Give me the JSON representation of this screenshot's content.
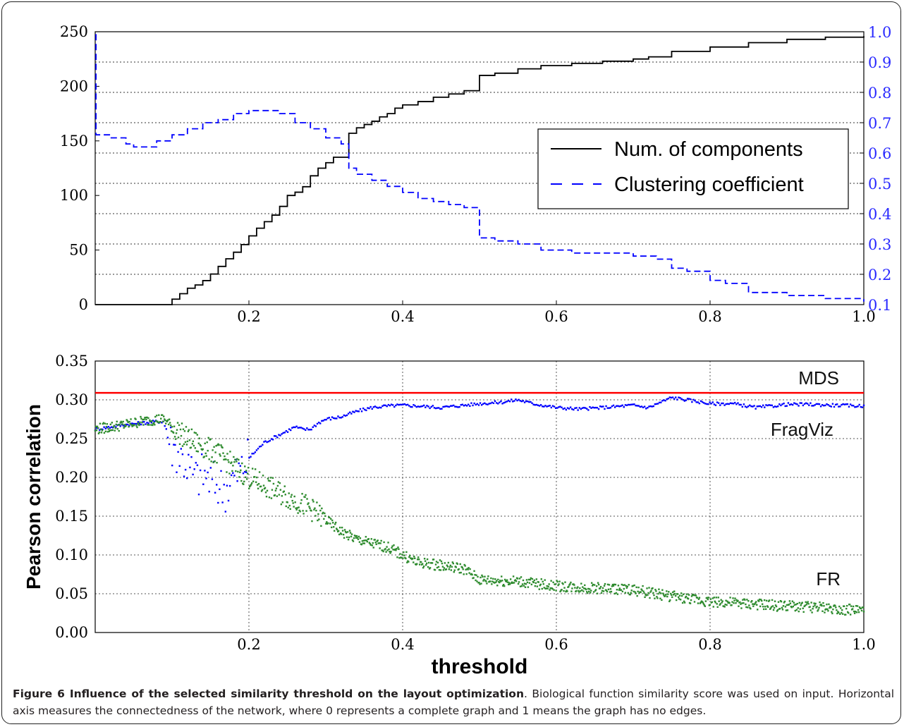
{
  "chart_data": [
    {
      "type": "line",
      "xlabel": "",
      "ylabel": "",
      "xlim": [
        0.0,
        1.0
      ],
      "ylim_left": [
        0,
        250
      ],
      "ylim_right": [
        0.1,
        1.0
      ],
      "x_ticks": [
        0.2,
        0.4,
        0.6,
        0.8,
        1.0
      ],
      "y_ticks_left": [
        0,
        50,
        100,
        150,
        200,
        250
      ],
      "y_ticks_right": [
        0.1,
        0.2,
        0.3,
        0.4,
        0.5,
        0.6,
        0.7,
        0.8,
        0.9,
        1.0
      ],
      "x_tick_labels": [
        "0.2",
        "0.4",
        "0.6",
        "0.8",
        "1.0"
      ],
      "y_tick_labels_left": [
        "0",
        "50",
        "100",
        "150",
        "200",
        "250"
      ],
      "y_tick_labels_right": [
        "0.1",
        "0.2",
        "0.3",
        "0.4",
        "0.5",
        "0.6",
        "0.7",
        "0.8",
        "0.9",
        "1.0"
      ],
      "grid": "horizontal dotted",
      "legend_position": "center-right",
      "series": [
        {
          "name": "Num. of components",
          "axis": "left",
          "color": "#000000",
          "style": "solid-step",
          "x": [
            0.0,
            0.09,
            0.1,
            0.11,
            0.12,
            0.13,
            0.14,
            0.15,
            0.16,
            0.17,
            0.18,
            0.19,
            0.2,
            0.21,
            0.22,
            0.23,
            0.24,
            0.25,
            0.26,
            0.27,
            0.28,
            0.29,
            0.3,
            0.31,
            0.32,
            0.33,
            0.34,
            0.35,
            0.36,
            0.37,
            0.38,
            0.39,
            0.4,
            0.42,
            0.44,
            0.46,
            0.48,
            0.5,
            0.52,
            0.55,
            0.58,
            0.62,
            0.66,
            0.7,
            0.72,
            0.75,
            0.8,
            0.85,
            0.9,
            0.95,
            1.0
          ],
          "values": [
            0,
            0,
            5,
            10,
            15,
            18,
            22,
            28,
            35,
            42,
            48,
            55,
            63,
            70,
            76,
            82,
            90,
            100,
            103,
            108,
            118,
            125,
            130,
            135,
            135,
            157,
            162,
            165,
            168,
            172,
            175,
            180,
            183,
            186,
            190,
            193,
            196,
            210,
            212,
            216,
            219,
            221,
            223,
            225,
            227,
            232,
            236,
            240,
            243,
            245,
            246
          ]
        },
        {
          "name": "Clustering coefficient",
          "axis": "right",
          "color": "#0000ff",
          "style": "dashed-step",
          "x": [
            0.0,
            0.001,
            0.005,
            0.02,
            0.04,
            0.05,
            0.06,
            0.08,
            0.1,
            0.12,
            0.14,
            0.16,
            0.18,
            0.2,
            0.21,
            0.22,
            0.24,
            0.25,
            0.26,
            0.28,
            0.3,
            0.32,
            0.33,
            0.34,
            0.36,
            0.38,
            0.4,
            0.42,
            0.44,
            0.46,
            0.48,
            0.5,
            0.52,
            0.55,
            0.58,
            0.62,
            0.66,
            0.7,
            0.73,
            0.75,
            0.77,
            0.8,
            0.82,
            0.85,
            0.9,
            0.95,
            1.0
          ],
          "values": [
            0.99,
            0.66,
            0.66,
            0.65,
            0.63,
            0.62,
            0.62,
            0.64,
            0.66,
            0.68,
            0.7,
            0.71,
            0.73,
            0.74,
            0.74,
            0.74,
            0.73,
            0.73,
            0.7,
            0.68,
            0.65,
            0.63,
            0.55,
            0.53,
            0.51,
            0.49,
            0.47,
            0.45,
            0.44,
            0.43,
            0.42,
            0.32,
            0.31,
            0.3,
            0.28,
            0.27,
            0.27,
            0.26,
            0.25,
            0.22,
            0.21,
            0.18,
            0.17,
            0.14,
            0.13,
            0.12,
            0.11
          ]
        }
      ]
    },
    {
      "type": "scatter",
      "xlabel": "threshold",
      "ylabel": "Pearson correlation",
      "xlim": [
        0.0,
        1.0
      ],
      "ylim": [
        0.0,
        0.35
      ],
      "x_ticks": [
        0.2,
        0.4,
        0.6,
        0.8,
        1.0
      ],
      "y_ticks": [
        0.0,
        0.05,
        0.1,
        0.15,
        0.2,
        0.25,
        0.3,
        0.35
      ],
      "x_tick_labels": [
        "0.2",
        "0.4",
        "0.6",
        "0.8",
        "1.0"
      ],
      "y_tick_labels": [
        "0.00",
        "0.05",
        "0.10",
        "0.15",
        "0.20",
        "0.25",
        "0.30",
        "0.35"
      ],
      "grid": "both dotted",
      "series": [
        {
          "name": "MDS",
          "type": "hline",
          "color": "#ff0000",
          "value": 0.309
        },
        {
          "name": "FragViz",
          "color": "#0000ff",
          "x": [
            0.0,
            0.02,
            0.04,
            0.06,
            0.08,
            0.09,
            0.1,
            0.11,
            0.12,
            0.13,
            0.14,
            0.15,
            0.16,
            0.17,
            0.18,
            0.19,
            0.2,
            0.21,
            0.22,
            0.23,
            0.24,
            0.25,
            0.26,
            0.27,
            0.28,
            0.29,
            0.3,
            0.32,
            0.34,
            0.36,
            0.38,
            0.4,
            0.42,
            0.45,
            0.48,
            0.5,
            0.53,
            0.55,
            0.57,
            0.6,
            0.63,
            0.66,
            0.7,
            0.72,
            0.75,
            0.77,
            0.8,
            0.83,
            0.86,
            0.9,
            0.93,
            0.96,
            1.0
          ],
          "values": [
            0.262,
            0.265,
            0.268,
            0.27,
            0.272,
            0.272,
            0.24,
            0.23,
            0.215,
            0.2,
            0.205,
            0.195,
            0.19,
            0.185,
            0.2,
            0.21,
            0.225,
            0.235,
            0.245,
            0.25,
            0.255,
            0.26,
            0.265,
            0.262,
            0.262,
            0.27,
            0.275,
            0.278,
            0.285,
            0.29,
            0.292,
            0.293,
            0.292,
            0.29,
            0.293,
            0.295,
            0.297,
            0.3,
            0.295,
            0.29,
            0.288,
            0.29,
            0.293,
            0.29,
            0.303,
            0.3,
            0.295,
            0.295,
            0.29,
            0.294,
            0.294,
            0.293,
            0.292
          ]
        },
        {
          "name": "FR",
          "color": "#2e8b2e",
          "x": [
            0.0,
            0.02,
            0.04,
            0.06,
            0.08,
            0.09,
            0.1,
            0.12,
            0.14,
            0.16,
            0.18,
            0.2,
            0.22,
            0.24,
            0.26,
            0.28,
            0.3,
            0.32,
            0.34,
            0.36,
            0.38,
            0.4,
            0.42,
            0.44,
            0.46,
            0.48,
            0.5,
            0.52,
            0.55,
            0.58,
            0.6,
            0.63,
            0.66,
            0.7,
            0.73,
            0.76,
            0.8,
            0.83,
            0.86,
            0.9,
            0.93,
            0.96,
            1.0
          ],
          "values": [
            0.262,
            0.265,
            0.268,
            0.272,
            0.275,
            0.275,
            0.265,
            0.25,
            0.24,
            0.23,
            0.215,
            0.2,
            0.19,
            0.18,
            0.17,
            0.16,
            0.145,
            0.13,
            0.12,
            0.115,
            0.11,
            0.1,
            0.09,
            0.088,
            0.085,
            0.082,
            0.068,
            0.067,
            0.066,
            0.062,
            0.06,
            0.058,
            0.057,
            0.055,
            0.05,
            0.045,
            0.04,
            0.038,
            0.036,
            0.034,
            0.033,
            0.031,
            0.028
          ]
        }
      ],
      "annotations": [
        "MDS",
        "FragViz",
        "FR"
      ]
    }
  ],
  "caption": {
    "title": "Figure 6 Influence of the selected similarity threshold on the layout optimization",
    "text": ". Biological function similarity score was used on input. Horizontal axis measures the connectedness of the network, where 0 represents a complete graph and 1 means the graph has no edges."
  }
}
